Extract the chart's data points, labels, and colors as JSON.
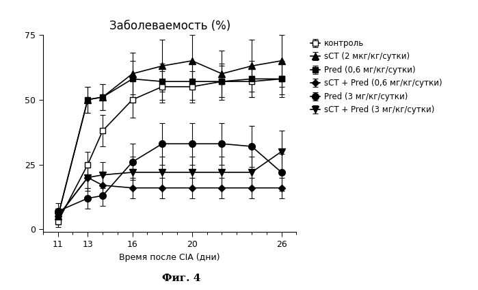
{
  "title": "Заболеваемость (%)",
  "xlabel": "Время после CIA (дни)",
  "caption": "Фиг. 4",
  "xlim": [
    10,
    27
  ],
  "ylim": [
    -1,
    75
  ],
  "yticks": [
    0,
    25,
    50,
    75
  ],
  "xtick_positions": [
    11,
    13,
    16,
    20,
    26
  ],
  "xtick_labels": [
    "11",
    "13",
    "16",
    "20",
    "26"
  ],
  "minor_xticks": [
    11,
    12,
    13,
    14,
    15,
    16,
    17,
    18,
    19,
    20,
    21,
    22,
    23,
    24,
    25,
    26
  ],
  "series": [
    {
      "label": "контроль",
      "x": [
        11,
        13,
        14,
        16,
        18,
        20,
        22,
        24,
        26
      ],
      "y": [
        3,
        25,
        38,
        50,
        55,
        55,
        57,
        57,
        58
      ],
      "yerr": [
        2,
        5,
        6,
        7,
        6,
        6,
        6,
        6,
        6
      ],
      "marker": "s",
      "marker_facecolor": "white",
      "marker_edgecolor": "black",
      "color": "black",
      "markersize": 6,
      "linewidth": 1.2
    },
    {
      "label": "sCT (2 мкг/кг/сутки)",
      "x": [
        11,
        13,
        14,
        16,
        18,
        20,
        22,
        24,
        26
      ],
      "y": [
        5,
        50,
        51,
        60,
        63,
        65,
        60,
        63,
        65
      ],
      "yerr": [
        3,
        5,
        5,
        8,
        10,
        10,
        9,
        10,
        10
      ],
      "marker": "^",
      "marker_facecolor": "black",
      "marker_edgecolor": "black",
      "color": "black",
      "markersize": 7,
      "linewidth": 1.2
    },
    {
      "label": "Pred (0,6 мг/кг/сутки)",
      "x": [
        11,
        13,
        14,
        16,
        18,
        20,
        22,
        24,
        26
      ],
      "y": [
        5,
        50,
        51,
        58,
        57,
        57,
        57,
        58,
        58
      ],
      "yerr": [
        3,
        5,
        5,
        7,
        7,
        7,
        7,
        7,
        7
      ],
      "marker": "s",
      "marker_facecolor": "black",
      "marker_edgecolor": "black",
      "color": "black",
      "markersize": 6,
      "linewidth": 1.2
    },
    {
      "label": "sCT + Pred (0,6 мг/кг/сутки)",
      "x": [
        11,
        13,
        14,
        16,
        18,
        20,
        22,
        24,
        26
      ],
      "y": [
        5,
        20,
        17,
        16,
        16,
        16,
        16,
        16,
        16
      ],
      "yerr": [
        3,
        4,
        4,
        4,
        4,
        4,
        4,
        4,
        4
      ],
      "marker": "D",
      "marker_facecolor": "black",
      "marker_edgecolor": "black",
      "color": "black",
      "markersize": 5,
      "linewidth": 1.2
    },
    {
      "label": "Pred (3 мг/кг/сутки)",
      "x": [
        11,
        13,
        14,
        16,
        18,
        20,
        22,
        24,
        26
      ],
      "y": [
        7,
        12,
        13,
        26,
        33,
        33,
        33,
        32,
        22
      ],
      "yerr": [
        3,
        4,
        4,
        7,
        8,
        8,
        8,
        8,
        7
      ],
      "marker": "o",
      "marker_facecolor": "black",
      "marker_edgecolor": "black",
      "color": "black",
      "markersize": 7,
      "linewidth": 1.2
    },
    {
      "label": "sCT + Pred (3 мг/кг/сутки)",
      "x": [
        11,
        13,
        14,
        16,
        18,
        20,
        22,
        24,
        26
      ],
      "y": [
        5,
        20,
        21,
        22,
        22,
        22,
        22,
        22,
        30
      ],
      "yerr": [
        3,
        5,
        5,
        6,
        6,
        6,
        6,
        6,
        8
      ],
      "marker": "v",
      "marker_facecolor": "black",
      "marker_edgecolor": "black",
      "color": "black",
      "markersize": 7,
      "linewidth": 1.2
    }
  ],
  "legend_fontsize": 8.5,
  "title_fontsize": 12,
  "axis_fontsize": 9,
  "caption_fontsize": 11,
  "background_color": "#ffffff"
}
